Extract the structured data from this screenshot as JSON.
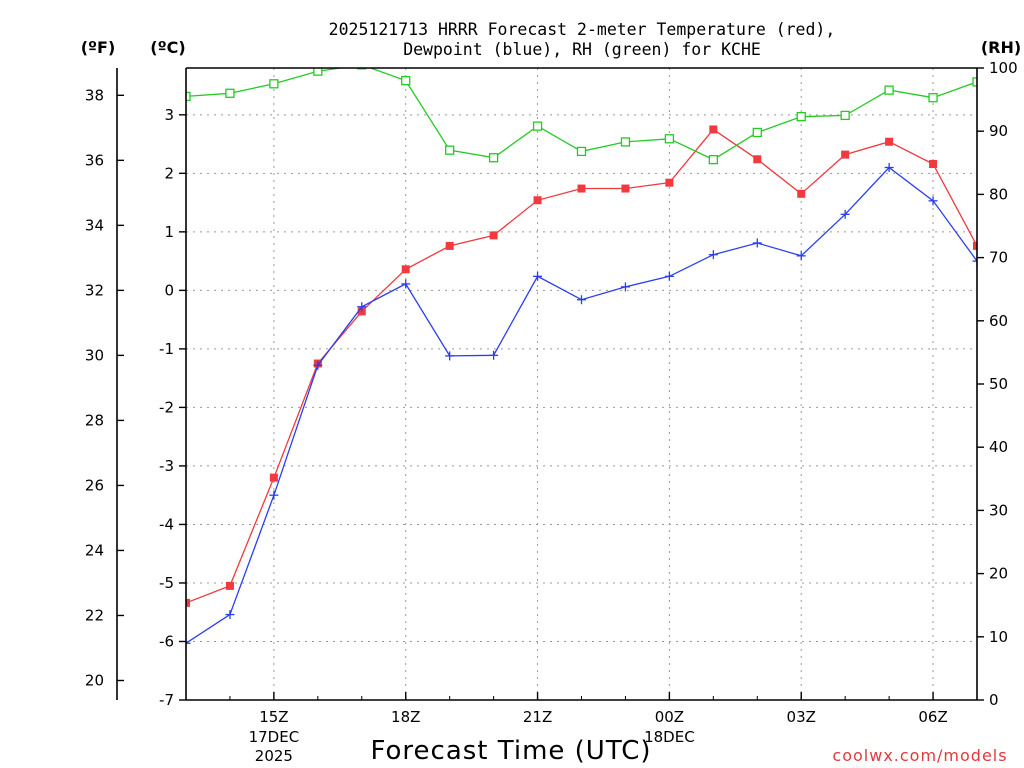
{
  "chart_data": {
    "type": "line",
    "title_lines": [
      "2025121713 HRRR Forecast 2-meter Temperature (red),",
      "Dewpoint (blue), RH (green) for KCHE"
    ],
    "units": {
      "left_outer": "(ºF)",
      "left_inner": "(ºC)",
      "right": "(RH)"
    },
    "xlabel": "Forecast Time (UTC)",
    "credit": "coolwx.com/models",
    "x_range": [
      13,
      31
    ],
    "x": [
      13,
      14,
      15,
      16,
      17,
      18,
      19,
      20,
      21,
      22,
      23,
      24,
      25,
      26,
      27,
      28,
      29,
      30,
      31
    ],
    "x_ticks": [
      {
        "x": 15,
        "label": "15Z",
        "sub": [
          "17DEC",
          "2025"
        ]
      },
      {
        "x": 18,
        "label": "18Z",
        "sub": []
      },
      {
        "x": 21,
        "label": "21Z",
        "sub": []
      },
      {
        "x": 24,
        "label": "00Z",
        "sub": [
          "18DEC"
        ]
      },
      {
        "x": 27,
        "label": "03Z",
        "sub": []
      },
      {
        "x": 30,
        "label": "06Z",
        "sub": []
      }
    ],
    "y_c": {
      "range": [
        -7,
        3.8
      ],
      "ticks": [
        3,
        2,
        1,
        0,
        -1,
        -2,
        -3,
        -4,
        -5,
        -6,
        -7
      ]
    },
    "y_f_ticks": [
      38,
      36,
      34,
      32,
      30,
      28,
      26,
      24,
      22,
      20
    ],
    "y_f_tick_labels": [
      "38",
      "36",
      "34",
      "32",
      "30",
      "28",
      "26",
      "24",
      "22",
      "20"
    ],
    "y_rh": {
      "range": [
        0,
        100
      ],
      "ticks": [
        100,
        90,
        80,
        70,
        60,
        50,
        40,
        30,
        20,
        10,
        0
      ]
    },
    "series": [
      {
        "name": "Temperature (°C)",
        "color": "#f03a3f",
        "marker": "filled-square",
        "axis": "c",
        "values": [
          -5.34,
          -5.05,
          -3.2,
          -1.25,
          -0.36,
          0.36,
          0.76,
          0.94,
          1.54,
          1.74,
          1.74,
          1.84,
          2.75,
          2.24,
          1.65,
          2.32,
          2.54,
          2.16,
          0.76
        ]
      },
      {
        "name": "Dewpoint (°C)",
        "color": "#2a3ef0",
        "marker": "plus",
        "axis": "c",
        "values": [
          -6.03,
          -5.54,
          -3.5,
          -1.28,
          -0.28,
          0.11,
          -1.12,
          -1.11,
          0.24,
          -0.16,
          0.06,
          0.24,
          0.61,
          0.81,
          0.59,
          1.3,
          2.1,
          1.53,
          0.5
        ]
      },
      {
        "name": "RH (%)",
        "color": "#22cc22",
        "marker": "open-square",
        "axis": "rh",
        "values": [
          95.5,
          96,
          97.5,
          99.5,
          100.5,
          98,
          87,
          85.8,
          90.8,
          86.8,
          88.3,
          88.8,
          85.5,
          89.8,
          92.3,
          92.5,
          96.5,
          95.3,
          97.8
        ]
      }
    ]
  }
}
